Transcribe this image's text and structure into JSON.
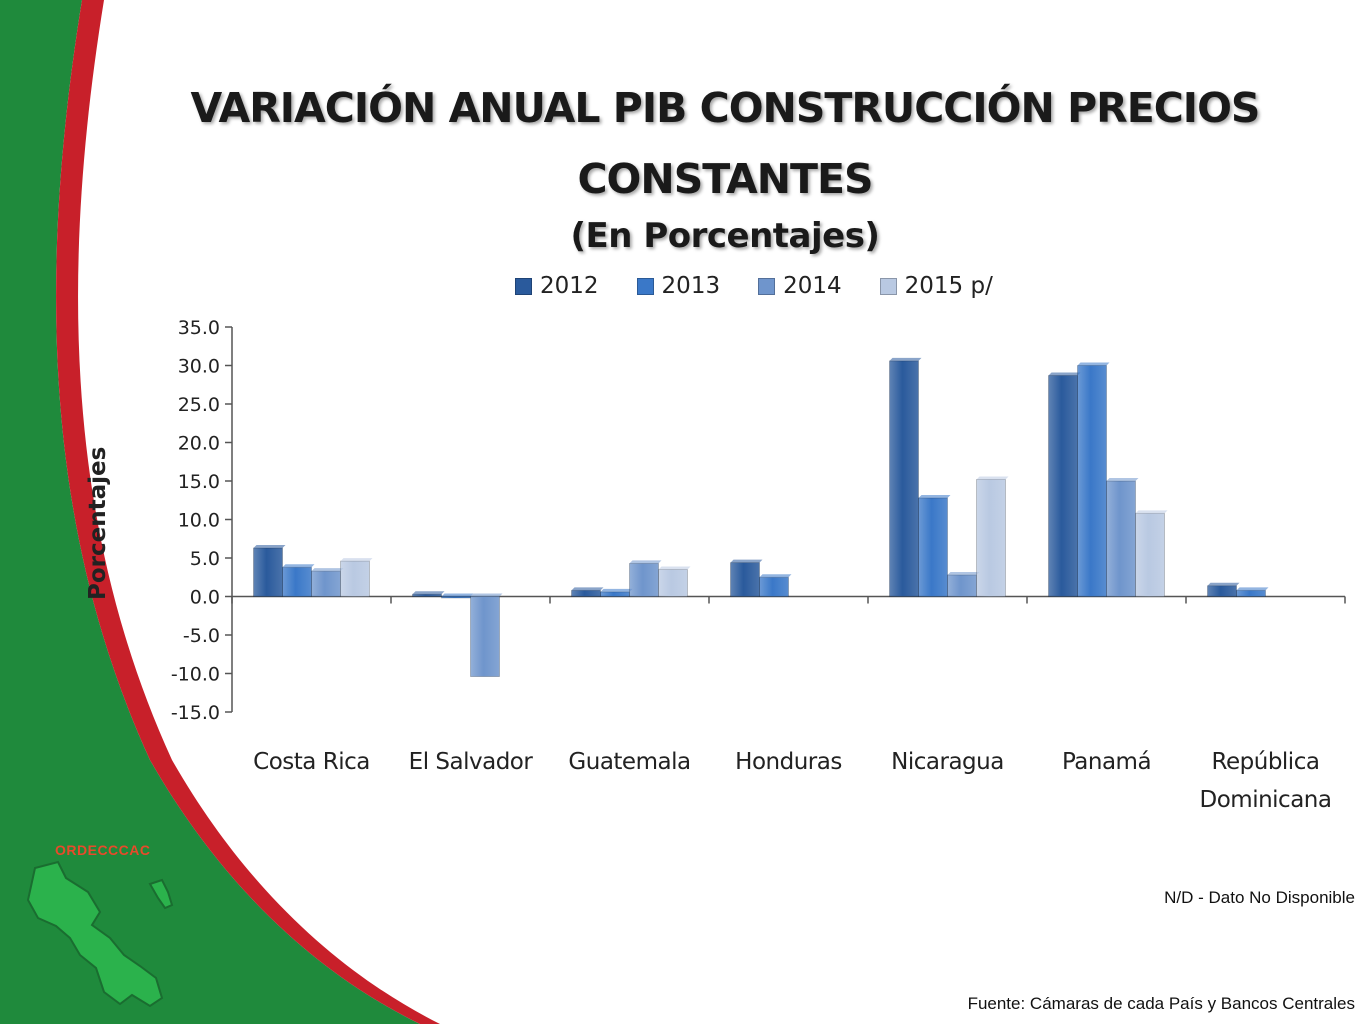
{
  "title": {
    "line1": "VARIACIÓN ANUAL PIB CONSTRUCCIÓN PRECIOS",
    "line2": "CONSTANTES",
    "line3": "(En Porcentajes)"
  },
  "brand": "ORDECCCAC",
  "note": "N/D  - Dato No Disponible",
  "source": "Fuente: Cámaras de cada País y Bancos Centrales",
  "colors": {
    "green_bg": "#1f8a3c",
    "red_stripe": "#c8202a",
    "series": [
      "#2a5a9c",
      "#3a78c8",
      "#6f95cc",
      "#b9c9e2"
    ]
  },
  "chart_data": {
    "type": "bar",
    "ylabel": "Porcentajes",
    "ylim": [
      -15,
      35
    ],
    "yticks": [
      "35.0",
      "30.0",
      "25.0",
      "20.0",
      "15.0",
      "10.0",
      "5.0",
      "0.0",
      "-5.0",
      "-10.0",
      "-15.0"
    ],
    "legend_position": "top",
    "categories": [
      "Costa Rica",
      "El Salvador",
      "Guatemala",
      "Honduras",
      "Nicaragua",
      "Panamá",
      "República Dominicana"
    ],
    "category_lines": [
      [
        "Costa Rica"
      ],
      [
        "El Salvador"
      ],
      [
        "Guatemala"
      ],
      [
        "Honduras"
      ],
      [
        "Nicaragua"
      ],
      [
        "Panamá"
      ],
      [
        "República",
        "Dominicana"
      ]
    ],
    "series": [
      {
        "name": "2012",
        "values": [
          6.3,
          0.3,
          0.8,
          4.4,
          30.6,
          28.7,
          1.4
        ]
      },
      {
        "name": "2013",
        "values": [
          3.8,
          -0.1,
          0.6,
          2.5,
          12.8,
          30.0,
          0.8
        ]
      },
      {
        "name": "2014",
        "values": [
          3.3,
          -10.4,
          4.3,
          null,
          2.8,
          15.0,
          null
        ]
      },
      {
        "name": "2015 p/",
        "values": [
          4.6,
          null,
          3.5,
          null,
          15.2,
          10.8,
          null
        ]
      }
    ]
  }
}
